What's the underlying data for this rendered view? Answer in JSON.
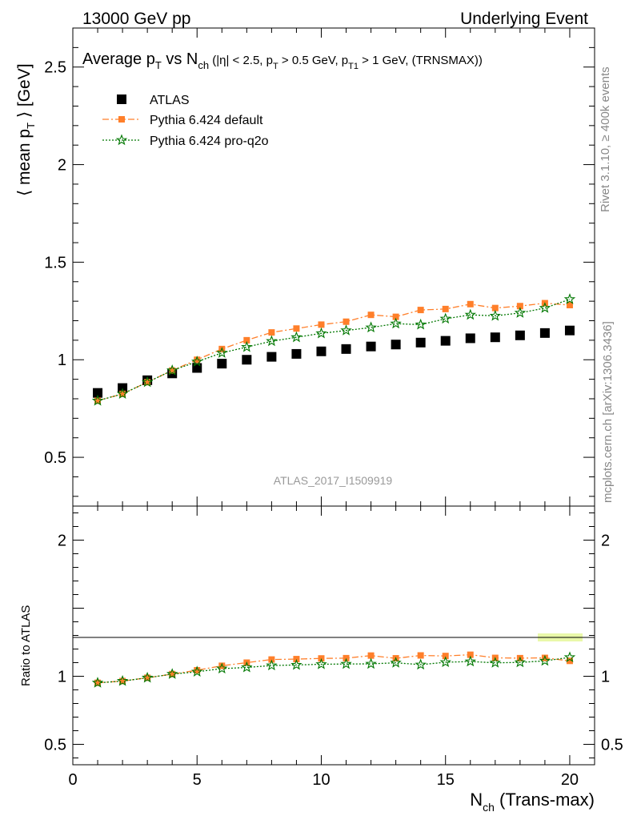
{
  "header": {
    "left": "13000 GeV pp",
    "right": "Underlying Event"
  },
  "side_labels": {
    "rivet": "Rivet 3.1.10, ≥ 400k events",
    "mcplots": "mcplots.cern.ch [arXiv:1306.3436]"
  },
  "chart_data": {
    "type": "scatter",
    "title_main": {
      "text": "Average p",
      "sub1": "T",
      "text2": " vs N",
      "sub2": "ch",
      "small": " (|η| < 2.5, p",
      "sub3": "T",
      "small2": " > 0.5 GeV, p",
      "sub4": "T1",
      "small3": " > 1 GeV, (TRNSMAX))"
    },
    "ylabel": {
      "pre": "⟨ mean p",
      "sub": "T",
      "post": " ⟩ [GeV]"
    },
    "xlabel": {
      "pre": "N",
      "sub": "ch",
      "post": " (Trans-max)"
    },
    "watermark": "ATLAS_2017_I1509919",
    "xlim": [
      0,
      21
    ],
    "ylim": [
      0.25,
      2.7
    ],
    "x_ticks": [
      0,
      5,
      10,
      15,
      20
    ],
    "y_ticks": [
      0.5,
      1,
      1.5,
      2,
      2.5
    ],
    "y_tick_labels": [
      "0.5",
      "1",
      "1.5",
      "2",
      "2.5"
    ],
    "legend": {
      "placement": "top-left",
      "items": [
        "ATLAS",
        "Pythia 6.424 default",
        "Pythia 6.424 pro-q2o"
      ]
    },
    "x": [
      1,
      2,
      3,
      4,
      5,
      6,
      7,
      8,
      9,
      10,
      11,
      12,
      13,
      14,
      15,
      16,
      17,
      18,
      19,
      20
    ],
    "series": [
      {
        "name": "ATLAS",
        "color": "#000000",
        "marker": "square",
        "values": [
          0.83,
          0.855,
          0.895,
          0.93,
          0.958,
          0.98,
          1.0,
          1.015,
          1.03,
          1.043,
          1.055,
          1.068,
          1.078,
          1.088,
          1.097,
          1.11,
          1.115,
          1.125,
          1.137,
          1.15
        ]
      },
      {
        "name": "Pythia 6.424 default",
        "color": "#ff7f2a",
        "marker": "square-small",
        "line": "dashdot",
        "values": [
          0.79,
          0.825,
          0.885,
          0.945,
          1.0,
          1.055,
          1.1,
          1.14,
          1.16,
          1.18,
          1.195,
          1.23,
          1.22,
          1.255,
          1.26,
          1.285,
          1.265,
          1.275,
          1.29,
          1.28
        ]
      },
      {
        "name": "Pythia 6.424 pro-q2o",
        "color": "#007700",
        "marker": "star",
        "line": "dotted",
        "values": [
          0.79,
          0.825,
          0.885,
          0.945,
          0.99,
          1.035,
          1.065,
          1.095,
          1.115,
          1.135,
          1.15,
          1.165,
          1.185,
          1.18,
          1.21,
          1.23,
          1.225,
          1.24,
          1.265,
          1.31
        ]
      }
    ],
    "ratio": {
      "ylabel": "Ratio to ATLAS",
      "ylim": [
        0.35,
        2.25
      ],
      "y_ticks": [
        0.5,
        1,
        2
      ],
      "y_tick_labels": [
        "0.5",
        "1",
        "2"
      ],
      "x_tick_labels": [
        "0",
        "5",
        "10",
        "15",
        "20"
      ],
      "series": [
        {
          "name": "Pythia 6.424 default",
          "values": [
            0.952,
            0.965,
            0.989,
            1.016,
            1.044,
            1.077,
            1.1,
            1.123,
            1.126,
            1.131,
            1.133,
            1.152,
            1.132,
            1.153,
            1.149,
            1.158,
            1.135,
            1.133,
            1.135,
            1.113
          ]
        },
        {
          "name": "Pythia 6.424 pro-q2o",
          "values": [
            0.952,
            0.965,
            0.989,
            1.016,
            1.033,
            1.056,
            1.065,
            1.079,
            1.083,
            1.088,
            1.09,
            1.091,
            1.099,
            1.085,
            1.103,
            1.108,
            1.099,
            1.102,
            1.113,
            1.139
          ]
        }
      ]
    }
  }
}
